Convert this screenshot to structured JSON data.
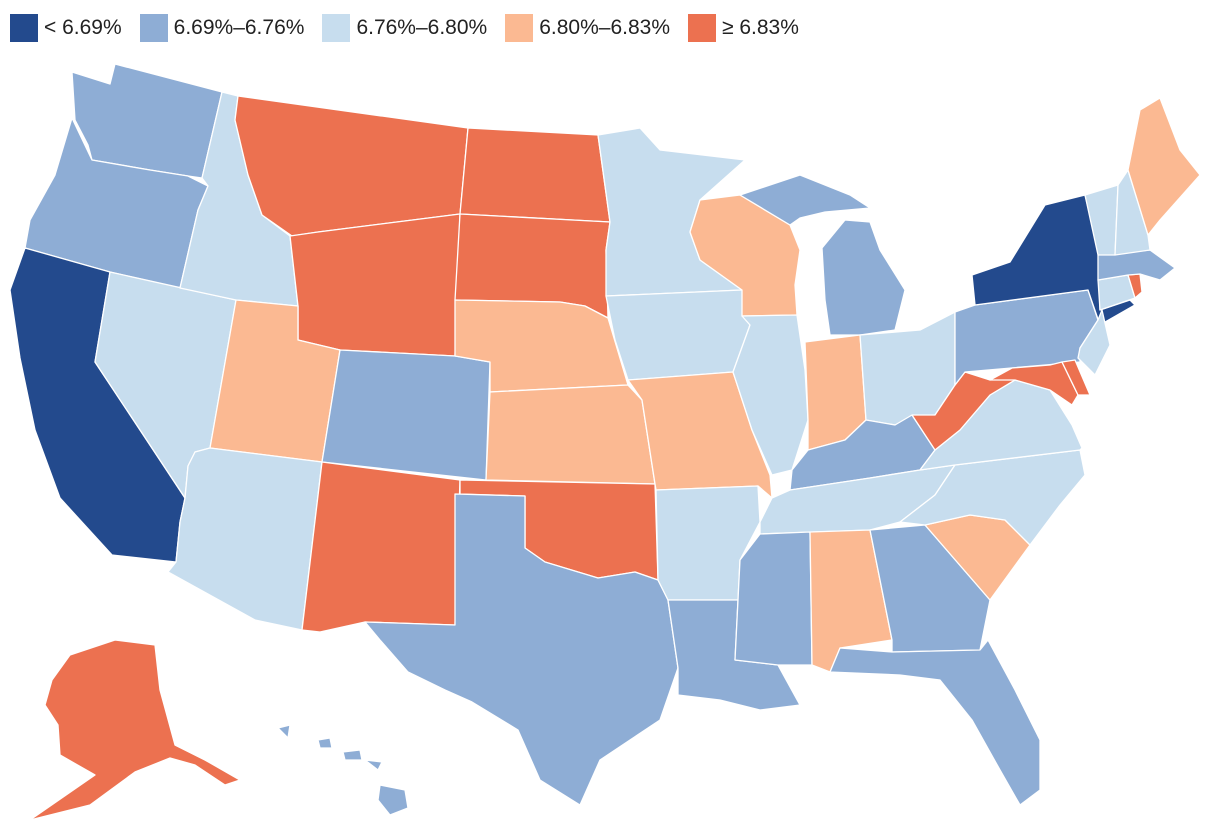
{
  "legend": {
    "bins": [
      {
        "id": "b1",
        "label": "< 6.69%",
        "color": "#234a8d"
      },
      {
        "id": "b2",
        "label": "6.69%–6.76%",
        "color": "#8eadd5"
      },
      {
        "id": "b3",
        "label": "6.76%–6.80%",
        "color": "#c7ddee"
      },
      {
        "id": "b4",
        "label": "6.80%–6.83%",
        "color": "#fbb992"
      },
      {
        "id": "b5",
        "label": "≥ 6.83%",
        "color": "#ec7150"
      }
    ]
  },
  "states": [
    {
      "code": "WA",
      "bin": "b2"
    },
    {
      "code": "OR",
      "bin": "b2"
    },
    {
      "code": "CA",
      "bin": "b1"
    },
    {
      "code": "NV",
      "bin": "b3"
    },
    {
      "code": "ID",
      "bin": "b3"
    },
    {
      "code": "MT",
      "bin": "b5"
    },
    {
      "code": "WY",
      "bin": "b5"
    },
    {
      "code": "UT",
      "bin": "b4"
    },
    {
      "code": "AZ",
      "bin": "b3"
    },
    {
      "code": "CO",
      "bin": "b2"
    },
    {
      "code": "NM",
      "bin": "b5"
    },
    {
      "code": "ND",
      "bin": "b5"
    },
    {
      "code": "SD",
      "bin": "b5"
    },
    {
      "code": "NE",
      "bin": "b4"
    },
    {
      "code": "KS",
      "bin": "b4"
    },
    {
      "code": "OK",
      "bin": "b5"
    },
    {
      "code": "TX",
      "bin": "b2"
    },
    {
      "code": "MN",
      "bin": "b3"
    },
    {
      "code": "IA",
      "bin": "b3"
    },
    {
      "code": "MO",
      "bin": "b4"
    },
    {
      "code": "AR",
      "bin": "b3"
    },
    {
      "code": "LA",
      "bin": "b2"
    },
    {
      "code": "WI",
      "bin": "b4"
    },
    {
      "code": "IL",
      "bin": "b3"
    },
    {
      "code": "MI",
      "bin": "b2"
    },
    {
      "code": "IN",
      "bin": "b4"
    },
    {
      "code": "OH",
      "bin": "b3"
    },
    {
      "code": "KY",
      "bin": "b2"
    },
    {
      "code": "TN",
      "bin": "b3"
    },
    {
      "code": "MS",
      "bin": "b2"
    },
    {
      "code": "AL",
      "bin": "b4"
    },
    {
      "code": "GA",
      "bin": "b2"
    },
    {
      "code": "FL",
      "bin": "b2"
    },
    {
      "code": "SC",
      "bin": "b4"
    },
    {
      "code": "NC",
      "bin": "b3"
    },
    {
      "code": "VA",
      "bin": "b3"
    },
    {
      "code": "WV",
      "bin": "b5"
    },
    {
      "code": "PA",
      "bin": "b2"
    },
    {
      "code": "NY",
      "bin": "b1"
    },
    {
      "code": "VT",
      "bin": "b3"
    },
    {
      "code": "NH",
      "bin": "b3"
    },
    {
      "code": "ME",
      "bin": "b4"
    },
    {
      "code": "MA",
      "bin": "b2"
    },
    {
      "code": "RI",
      "bin": "b5"
    },
    {
      "code": "CT",
      "bin": "b3"
    },
    {
      "code": "NJ",
      "bin": "b3"
    },
    {
      "code": "DE",
      "bin": "b5"
    },
    {
      "code": "MD",
      "bin": "b5"
    },
    {
      "code": "AK",
      "bin": "b5"
    },
    {
      "code": "HI",
      "bin": "b2"
    }
  ]
}
